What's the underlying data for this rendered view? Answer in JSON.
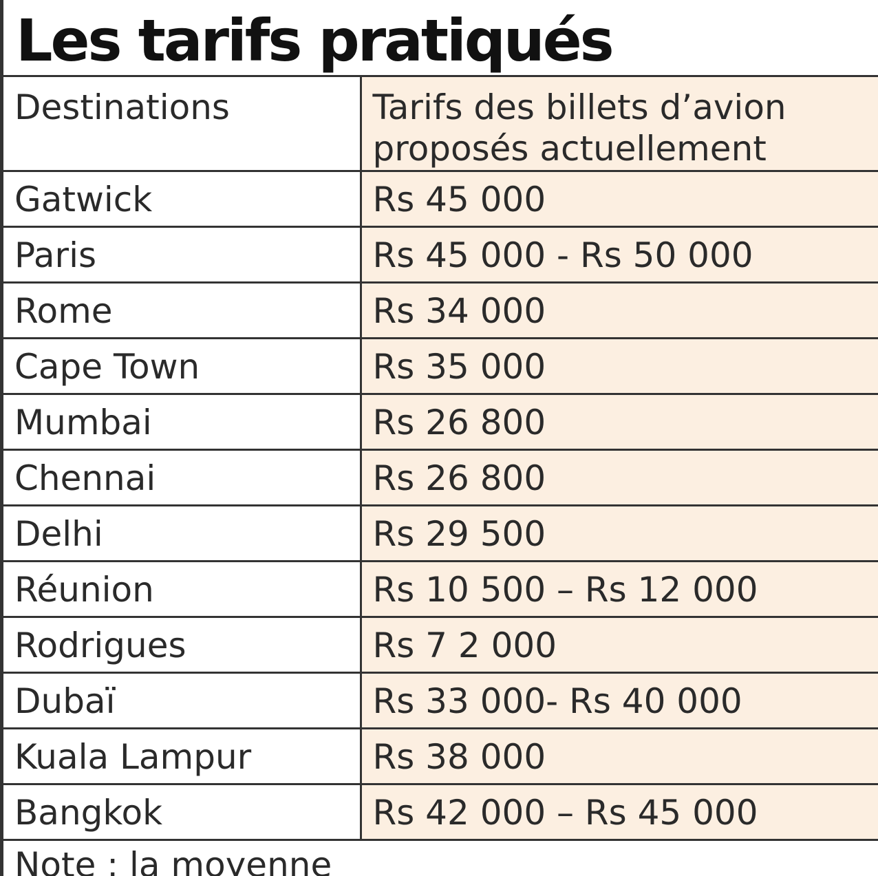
{
  "title": "Les tarifs pratiqués",
  "headers": {
    "destination": "Destinations",
    "fare": "Tarifs des billets d’avion proposés actuellement"
  },
  "rows": [
    {
      "destination": "Gatwick",
      "fare": "Rs 45 000"
    },
    {
      "destination": "Paris",
      "fare": "Rs 45 000 - Rs 50 000"
    },
    {
      "destination": "Rome",
      "fare": "Rs 34 000"
    },
    {
      "destination": "Cape Town",
      "fare": "Rs 35 000"
    },
    {
      "destination": "Mumbai",
      "fare": "Rs 26 800"
    },
    {
      "destination": "Chennai",
      "fare": "Rs 26 800"
    },
    {
      "destination": "Delhi",
      "fare": "Rs 29 500"
    },
    {
      "destination": "Réunion",
      "fare": "Rs 10 500 – Rs 12 000"
    },
    {
      "destination": "Rodrigues",
      "fare": "Rs 7 2 000"
    },
    {
      "destination": "Dubaï",
      "fare": "Rs 33 000- Rs 40 000"
    },
    {
      "destination": "Kuala Lampur",
      "fare": "Rs 38 000"
    },
    {
      "destination": "Bangkok",
      "fare": "Rs 42 000 – Rs 45 000"
    }
  ],
  "note": "Note :  la moyenne",
  "colors": {
    "fare_column_background": "#fcefe1",
    "rules": "#333333",
    "text": "#2a2a2a"
  }
}
